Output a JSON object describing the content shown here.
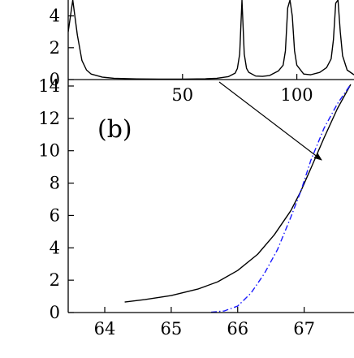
{
  "chart_data": [
    {
      "type": "line",
      "role": "inset-top",
      "title": "",
      "xlabel": "",
      "ylabel": "",
      "xlim": [
        0,
        125
      ],
      "ylim": [
        0,
        5
      ],
      "xticks": [
        {
          "v": 50,
          "label": "50"
        },
        {
          "v": 100,
          "label": "100"
        }
      ],
      "yticks": [
        {
          "v": 0,
          "label": "0"
        },
        {
          "v": 2,
          "label": "2"
        },
        {
          "v": 4,
          "label": "4"
        }
      ],
      "series": [
        {
          "color": "#000000",
          "style": "solid",
          "peaks": [
            2,
            76,
            97,
            118
          ],
          "x": [
            0,
            2,
            4,
            6,
            8,
            10,
            15,
            20,
            30,
            40,
            50,
            60,
            65,
            70,
            73,
            74,
            75,
            76,
            77,
            78,
            79,
            82,
            85,
            88,
            92,
            94,
            95,
            96,
            97,
            98,
            99,
            100,
            103,
            106,
            110,
            113,
            115,
            116,
            117,
            118,
            119,
            120,
            122,
            125
          ],
          "y": [
            3.0,
            5.0,
            2.8,
            1.2,
            0.6,
            0.35,
            0.15,
            0.08,
            0.04,
            0.03,
            0.03,
            0.05,
            0.08,
            0.18,
            0.4,
            0.7,
            1.6,
            5.0,
            1.6,
            0.7,
            0.45,
            0.22,
            0.2,
            0.25,
            0.55,
            0.9,
            1.8,
            4.5,
            5.0,
            4.0,
            1.8,
            0.9,
            0.35,
            0.3,
            0.45,
            0.75,
            1.3,
            2.5,
            4.8,
            5.0,
            3.0,
            1.5,
            0.6,
            0.3
          ]
        }
      ]
    },
    {
      "type": "line",
      "role": "main",
      "annotation": "(b)",
      "title": "",
      "xlabel": "",
      "ylabel": "",
      "xlim": [
        63.45,
        67.75
      ],
      "ylim": [
        0,
        14.4
      ],
      "xticks": [
        {
          "v": 64,
          "label": "64"
        },
        {
          "v": 65,
          "label": "65"
        },
        {
          "v": 66,
          "label": "66"
        },
        {
          "v": 67,
          "label": "67"
        }
      ],
      "yticks": [
        {
          "v": 0,
          "label": "0"
        },
        {
          "v": 2,
          "label": "2"
        },
        {
          "v": 4,
          "label": "4"
        },
        {
          "v": 6,
          "label": "6"
        },
        {
          "v": 8,
          "label": "8"
        },
        {
          "v": 10,
          "label": "10"
        },
        {
          "v": 12,
          "label": "12"
        },
        {
          "v": 14,
          "label": "14"
        }
      ],
      "series": [
        {
          "color": "#000000",
          "style": "solid",
          "x": [
            64.3,
            64.6,
            65.0,
            65.4,
            65.7,
            66.0,
            66.3,
            66.55,
            66.8,
            66.95,
            67.1,
            67.3,
            67.5,
            67.7
          ],
          "y": [
            0.65,
            0.8,
            1.05,
            1.45,
            1.9,
            2.6,
            3.6,
            4.8,
            6.3,
            7.5,
            8.9,
            10.8,
            12.6,
            14.1
          ]
        },
        {
          "color": "#1a1aff",
          "style": "dash-dot",
          "x": [
            65.6,
            65.8,
            66.0,
            66.2,
            66.4,
            66.6,
            66.8,
            66.95,
            67.1,
            67.3,
            67.5,
            67.7
          ],
          "y": [
            0.02,
            0.1,
            0.4,
            1.2,
            2.4,
            3.9,
            5.9,
            7.5,
            9.4,
            11.4,
            12.9,
            14.1
          ]
        }
      ]
    }
  ]
}
